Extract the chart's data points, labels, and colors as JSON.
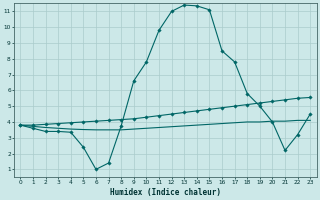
{
  "bg_color": "#cce8e8",
  "grid_color": "#aacccc",
  "line_color": "#006666",
  "xlabel": "Humidex (Indice chaleur)",
  "xlim": [
    -0.5,
    23.5
  ],
  "ylim": [
    0.5,
    11.5
  ],
  "xticks": [
    0,
    1,
    2,
    3,
    4,
    5,
    6,
    7,
    8,
    9,
    10,
    11,
    12,
    13,
    14,
    15,
    16,
    17,
    18,
    19,
    20,
    21,
    22,
    23
  ],
  "yticks": [
    1,
    2,
    3,
    4,
    5,
    6,
    7,
    8,
    9,
    10,
    11
  ],
  "line1_x": [
    0,
    1,
    2,
    3,
    4,
    5,
    6,
    7,
    8,
    9,
    10,
    11,
    12,
    13,
    14,
    15,
    16,
    17,
    18,
    19,
    20,
    21,
    22,
    23
  ],
  "line1_y": [
    3.8,
    3.6,
    3.4,
    3.4,
    3.35,
    2.4,
    1.0,
    1.4,
    3.75,
    6.6,
    7.8,
    9.8,
    11.0,
    11.4,
    11.35,
    11.1,
    8.5,
    7.8,
    5.8,
    5.0,
    4.0,
    2.2,
    3.2,
    4.5
  ],
  "line2_x": [
    0,
    1,
    2,
    3,
    4,
    5,
    6,
    7,
    8,
    9,
    10,
    11,
    12,
    13,
    14,
    15,
    16,
    17,
    18,
    19,
    20,
    21,
    22,
    23
  ],
  "line2_y": [
    3.8,
    3.8,
    3.85,
    3.9,
    3.95,
    4.0,
    4.05,
    4.1,
    4.15,
    4.2,
    4.3,
    4.4,
    4.5,
    4.6,
    4.7,
    4.8,
    4.9,
    5.0,
    5.1,
    5.2,
    5.3,
    5.4,
    5.5,
    5.55
  ],
  "line3_x": [
    0,
    1,
    2,
    3,
    4,
    5,
    6,
    7,
    8,
    9,
    10,
    11,
    12,
    13,
    14,
    15,
    16,
    17,
    18,
    19,
    20,
    21,
    22,
    23
  ],
  "line3_y": [
    3.8,
    3.72,
    3.65,
    3.6,
    3.55,
    3.52,
    3.5,
    3.5,
    3.5,
    3.55,
    3.6,
    3.65,
    3.7,
    3.75,
    3.8,
    3.85,
    3.9,
    3.95,
    4.0,
    4.0,
    4.05,
    4.05,
    4.1,
    4.1
  ]
}
